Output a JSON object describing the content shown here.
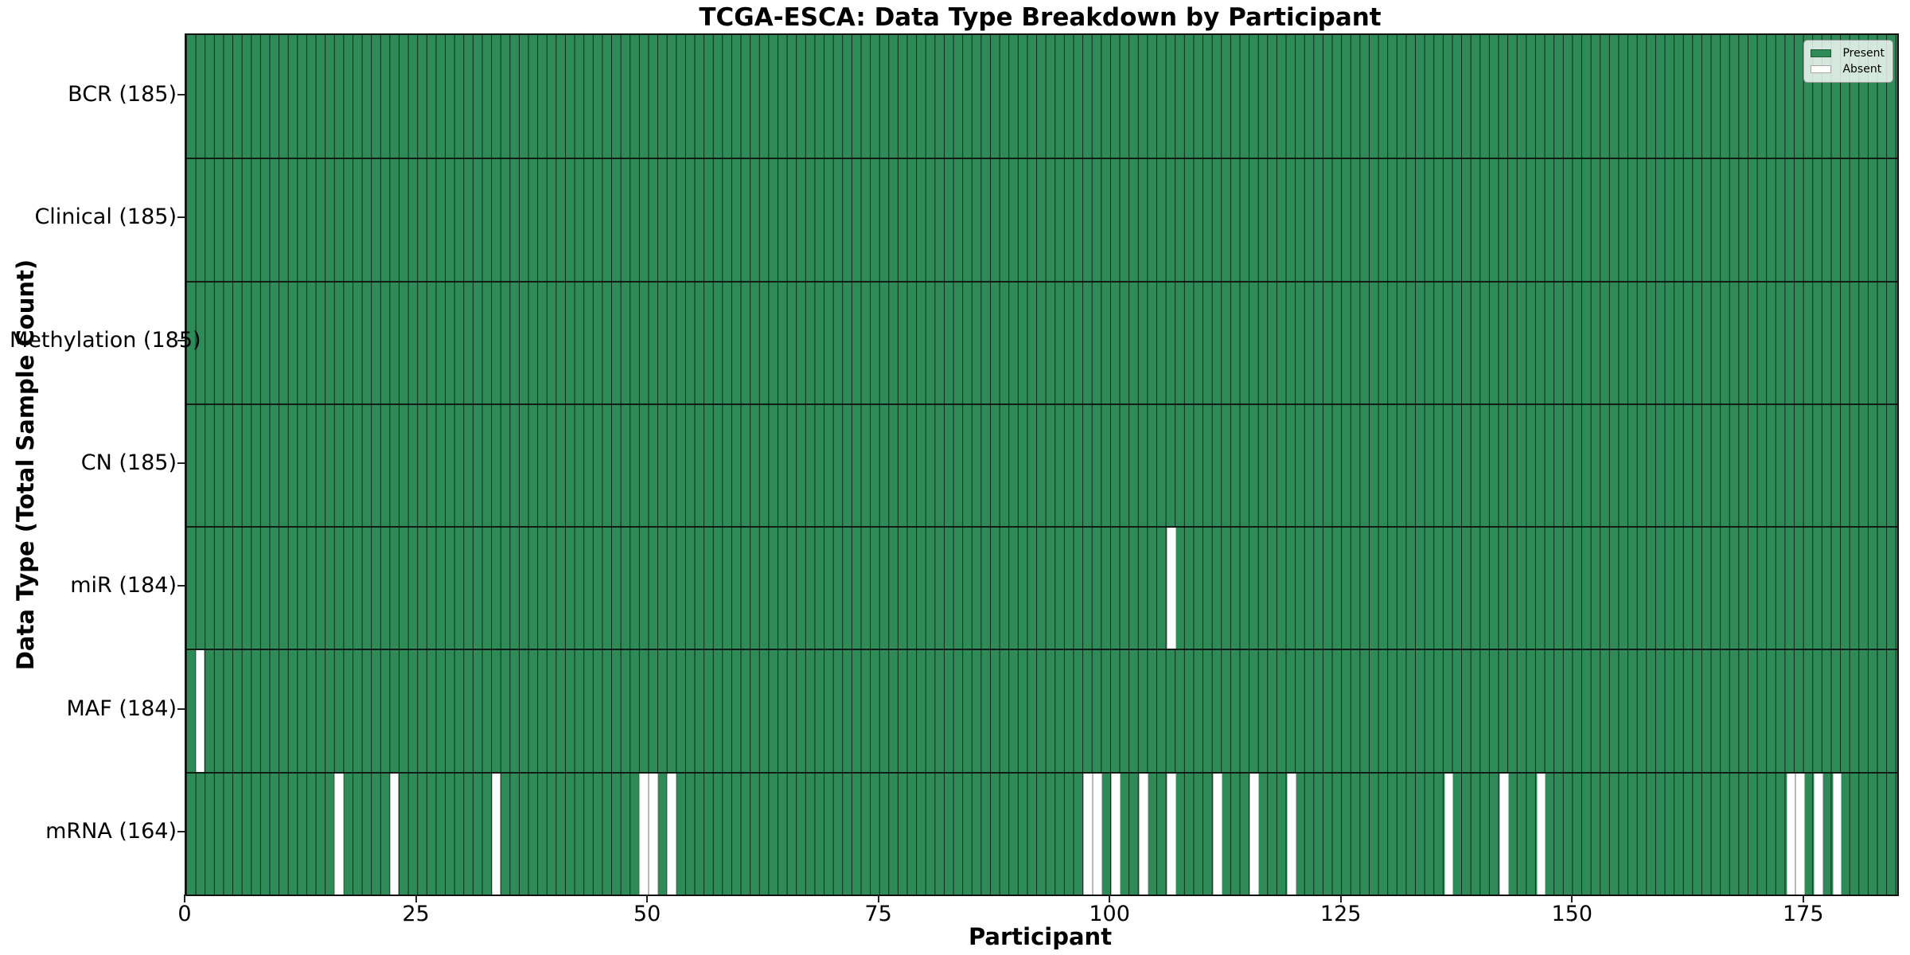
{
  "chart_data": {
    "type": "heatmap",
    "title": "TCGA-ESCA: Data Type Breakdown by Participant",
    "xlabel": "Participant",
    "ylabel": "Data Type (Total Sample Count)",
    "n_participants": 185,
    "x_range": [
      0,
      185
    ],
    "x_ticks": [
      0,
      25,
      50,
      75,
      100,
      125,
      150,
      175
    ],
    "grid": "per-cell vertical gridlines, horizontal row separators",
    "legend_position": "upper right",
    "legend": [
      {
        "label": "Present",
        "color": "#2E8B57"
      },
      {
        "label": "Absent",
        "color": "#ffffff"
      }
    ],
    "colors": {
      "present": "#2E8B57",
      "absent": "#ffffff"
    },
    "rows": [
      {
        "label": "BCR (185)",
        "data_type": "BCR",
        "present_count": 185,
        "absent_participants": []
      },
      {
        "label": "Clinical (185)",
        "data_type": "Clinical",
        "present_count": 185,
        "absent_participants": []
      },
      {
        "label": "Methylation (185)",
        "data_type": "Methylation",
        "present_count": 185,
        "absent_participants": []
      },
      {
        "label": "CN (185)",
        "data_type": "CN",
        "present_count": 185,
        "absent_participants": []
      },
      {
        "label": "miR (184)",
        "data_type": "miR",
        "present_count": 184,
        "absent_participants": [
          106
        ]
      },
      {
        "label": "MAF (184)",
        "data_type": "MAF",
        "present_count": 184,
        "absent_participants": [
          1
        ]
      },
      {
        "label": "mRNA (164)",
        "data_type": "mRNA",
        "present_count": 164,
        "absent_participants": [
          16,
          22,
          33,
          49,
          50,
          52,
          97,
          98,
          100,
          103,
          106,
          111,
          115,
          119,
          136,
          142,
          146,
          173,
          174,
          176,
          178
        ]
      }
    ]
  }
}
